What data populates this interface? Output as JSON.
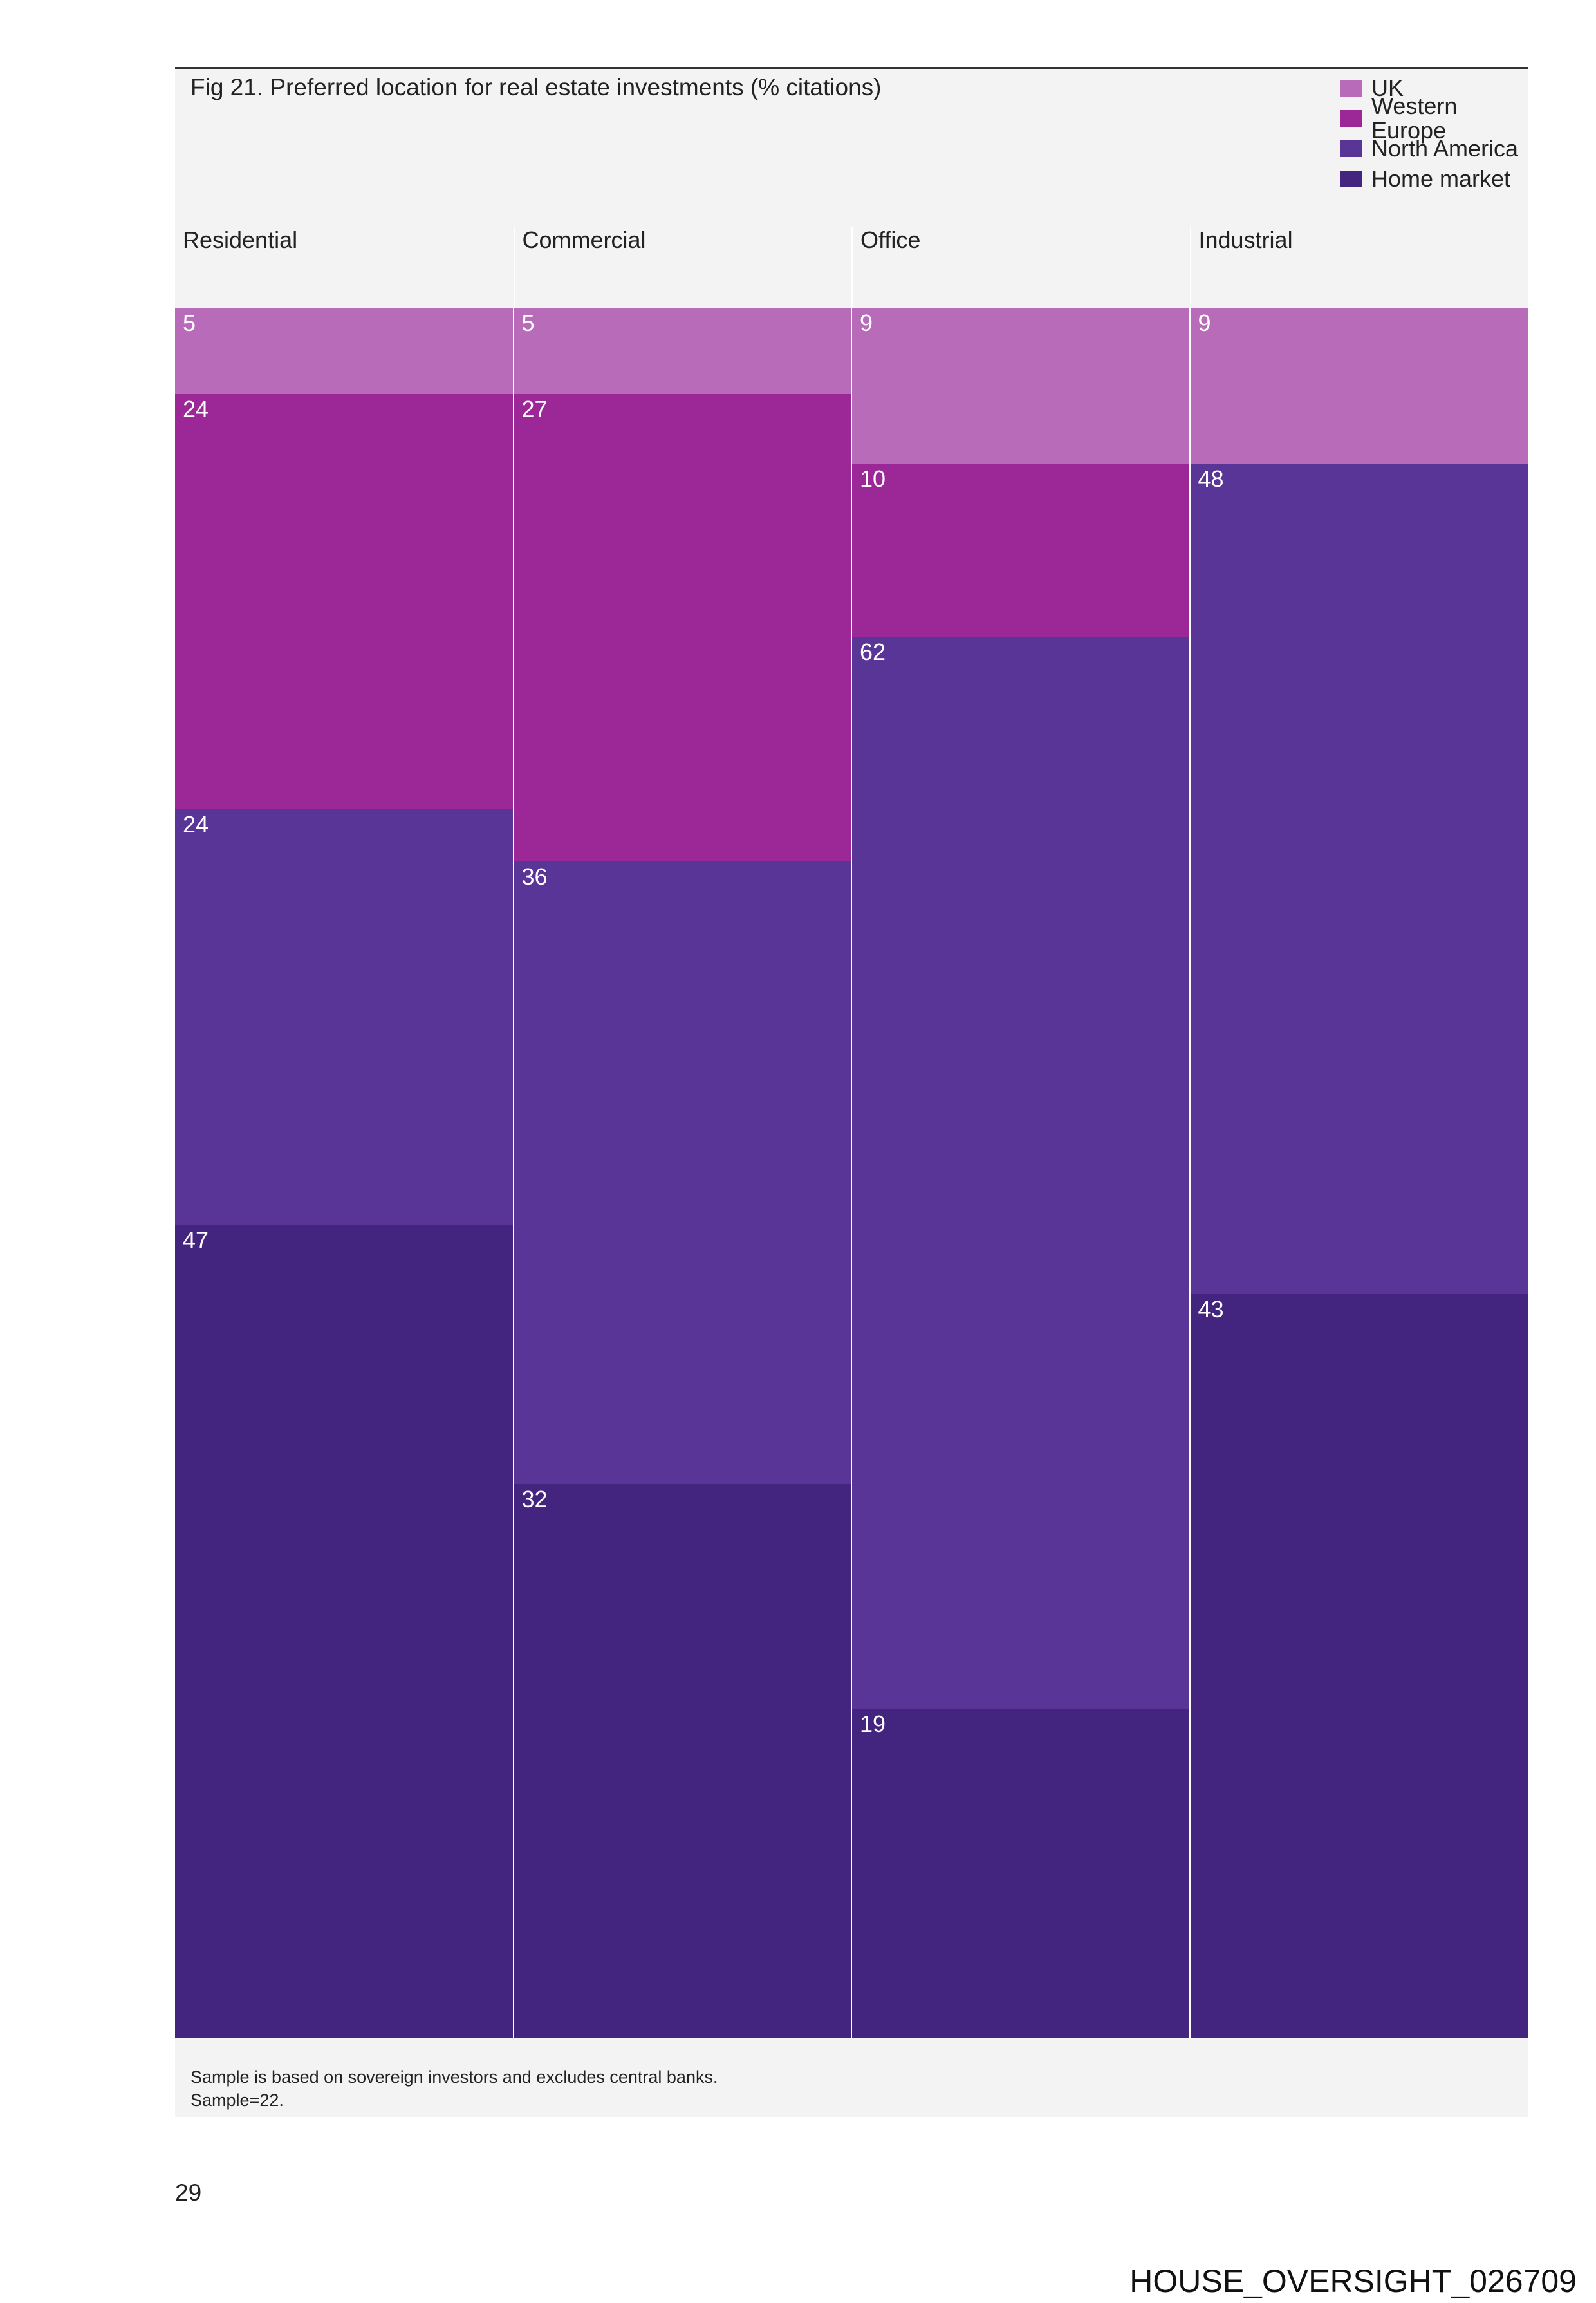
{
  "chart_data": {
    "type": "bar",
    "stacked": true,
    "title": "Fig 21. Preferred location for real estate investments (% citations)",
    "categories": [
      "Residential",
      "Commercial",
      "Office",
      "Industrial"
    ],
    "series": [
      {
        "name": "UK",
        "color": "#b86bb8",
        "values": [
          5,
          5,
          9,
          9
        ]
      },
      {
        "name": "Western Europe",
        "color": "#9c2797",
        "values": [
          24,
          27,
          10,
          0
        ]
      },
      {
        "name": "North America",
        "color": "#5a3598",
        "values": [
          24,
          36,
          62,
          48
        ]
      },
      {
        "name": "Home market",
        "color": "#43247e",
        "values": [
          47,
          32,
          19,
          43
        ]
      }
    ],
    "ylim": [
      0,
      100
    ],
    "legend_position": "top-right",
    "grid": false
  },
  "footnote": [
    "Sample is based on sovereign investors and excludes central banks.",
    "Sample=22."
  ],
  "page_number": "29",
  "stamp": "HOUSE_OVERSIGHT_026709"
}
